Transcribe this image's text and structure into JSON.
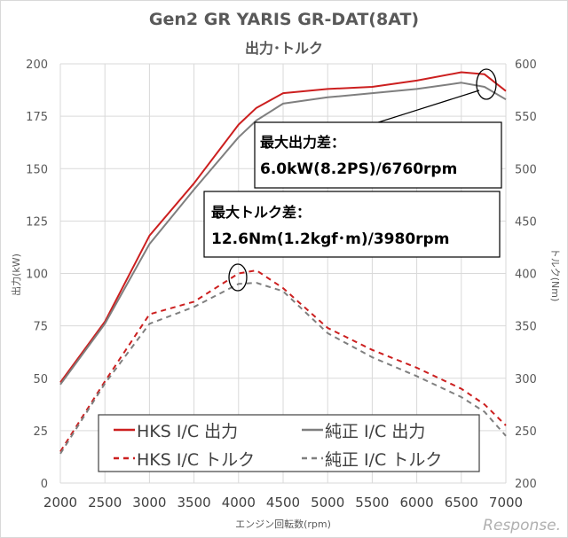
{
  "chart_data": {
    "type": "line",
    "title": "Gen2 GR YARIS GR-DAT(8AT)",
    "subtitle": "出力･トルク",
    "xlabel": "エンジン回転数(rpm)",
    "ylabel": "出力(kW)",
    "y2label": "トルク(Nm)",
    "xlim": [
      2000,
      7000
    ],
    "ylim": [
      0,
      200
    ],
    "y2lim": [
      200,
      600
    ],
    "xticks": [
      "2000",
      "2500",
      "3000",
      "3500",
      "4000",
      "4500",
      "5000",
      "5500",
      "6000",
      "6500",
      "7000"
    ],
    "yticks": [
      "0",
      "25",
      "50",
      "75",
      "100",
      "125",
      "150",
      "175",
      "200"
    ],
    "y2ticks": [
      "200",
      "250",
      "300",
      "350",
      "400",
      "450",
      "500",
      "550",
      "600"
    ],
    "grid": true,
    "x": [
      2000,
      2500,
      3000,
      3500,
      4000,
      4200,
      4500,
      5000,
      5500,
      6000,
      6500,
      6760,
      7000
    ],
    "series": [
      {
        "name": "HKS I/C 出力",
        "axis": "left",
        "style": "solid",
        "color": "#cc1f1f",
        "values": [
          48,
          77,
          118,
          143,
          171,
          179,
          186,
          188,
          189,
          192,
          196,
          195,
          187
        ]
      },
      {
        "name": "純正 I/C 出力",
        "axis": "left",
        "style": "solid",
        "color": "#7f7f7f",
        "values": [
          47,
          76,
          114,
          140,
          165,
          173,
          181,
          184,
          186,
          188,
          191,
          189,
          183
        ]
      },
      {
        "name": "HKS I/C トルク",
        "axis": "right",
        "style": "dashed",
        "color": "#cc1f1f",
        "values": [
          230,
          297,
          361,
          373,
          400,
          403,
          386,
          348,
          327,
          310,
          290,
          275,
          255
        ]
      },
      {
        "name": "純正 I/C トルク",
        "axis": "right",
        "style": "dashed",
        "color": "#7f7f7f",
        "values": [
          228,
          295,
          352,
          368,
          390,
          391,
          383,
          343,
          320,
          302,
          282,
          268,
          245
        ]
      }
    ],
    "legend": "bottom-center inside",
    "annotations": [
      {
        "line1": "最大出力差：",
        "line2": "6.0kW(8.2PS)/6760rpm",
        "at_rpm": 6760
      },
      {
        "line1": "最大トルク差：",
        "line2": "12.6Nm(1.2kgf･m)/3980rpm",
        "at_rpm": 3980
      }
    ]
  },
  "watermark": "Response."
}
